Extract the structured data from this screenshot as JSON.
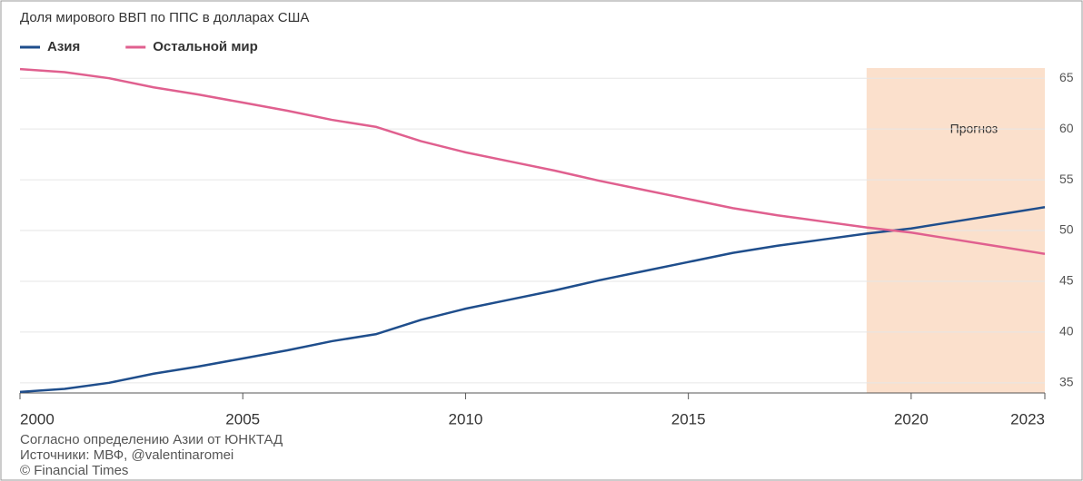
{
  "chart_data": {
    "type": "line",
    "title": "Доля мирового ВВП по ППС в долларах США",
    "x": [
      2000,
      2001,
      2002,
      2003,
      2004,
      2005,
      2006,
      2007,
      2008,
      2009,
      2010,
      2011,
      2012,
      2013,
      2014,
      2015,
      2016,
      2017,
      2018,
      2019,
      2020,
      2021,
      2022,
      2023
    ],
    "series": [
      {
        "name": "Азия",
        "color": "#1f4e8c",
        "values": [
          34.1,
          34.4,
          35.0,
          35.9,
          36.6,
          37.4,
          38.2,
          39.1,
          39.8,
          41.2,
          42.3,
          43.2,
          44.1,
          45.1,
          46.0,
          46.9,
          47.8,
          48.5,
          49.1,
          49.7,
          50.2,
          50.9,
          51.6,
          52.3
        ]
      },
      {
        "name": "Остальной мир",
        "color": "#e0608f",
        "values": [
          65.9,
          65.6,
          65.0,
          64.1,
          63.4,
          62.6,
          61.8,
          60.9,
          60.2,
          58.8,
          57.7,
          56.8,
          55.9,
          54.9,
          54.0,
          53.1,
          52.2,
          51.5,
          50.9,
          50.3,
          49.8,
          49.1,
          48.4,
          47.7
        ]
      }
    ],
    "xlim": [
      2000,
      2023
    ],
    "xticks": [
      2000,
      2005,
      2010,
      2015,
      2020,
      2023
    ],
    "ylim": [
      34,
      66
    ],
    "yticks": [
      35,
      40,
      45,
      50,
      55,
      60,
      65
    ],
    "grid": true,
    "forecast": {
      "label": "Прогноз",
      "start": 2019,
      "end": 2023
    },
    "notes": [
      "Согласно определению Азии от ЮНКТАД",
      "Источники: МВФ, @valentinaromei",
      "© Financial Times"
    ]
  }
}
